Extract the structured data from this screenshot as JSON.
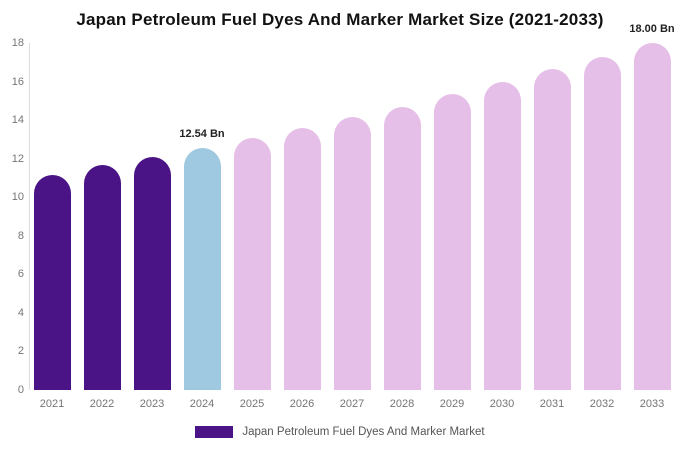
{
  "chart_data": {
    "type": "bar",
    "title": "Japan Petroleum Fuel Dyes And Marker Market Size (2021-2033)",
    "categories": [
      "2021",
      "2022",
      "2023",
      "2024",
      "2025",
      "2026",
      "2027",
      "2028",
      "2029",
      "2030",
      "2031",
      "2032",
      "2033"
    ],
    "values": [
      11.15,
      11.65,
      12.1,
      12.54,
      13.05,
      13.6,
      14.15,
      14.7,
      15.35,
      16.0,
      16.65,
      17.3,
      18.0
    ],
    "unit": "Bn",
    "bar_roles": [
      "historical",
      "historical",
      "historical",
      "current",
      "forecast",
      "forecast",
      "forecast",
      "forecast",
      "forecast",
      "forecast",
      "forecast",
      "forecast",
      "forecast"
    ],
    "role_colors": {
      "historical": "#4a1486",
      "current": "#9fc9e0",
      "forecast": "#e6bfe9"
    },
    "data_labels": [
      {
        "category": "2024",
        "text": "12.54 Bn"
      },
      {
        "category": "2033",
        "text": "18.00 Bn"
      }
    ],
    "xlabel": "",
    "ylabel": "",
    "ylim": [
      0,
      18
    ],
    "yticks": [
      0,
      2,
      4,
      6,
      8,
      10,
      12,
      14,
      16,
      18
    ],
    "grid": false,
    "legend": {
      "position": "bottom",
      "items": [
        {
          "label": "Japan Petroleum Fuel Dyes And Marker Market",
          "color": "#4a1486"
        }
      ]
    }
  },
  "colors": {
    "background": "#ffffff",
    "axis_line": "#dddddd",
    "tick_label": "#757575",
    "legend_text": "#555555",
    "title_text": "#111111",
    "annotation_text": "#222222"
  }
}
